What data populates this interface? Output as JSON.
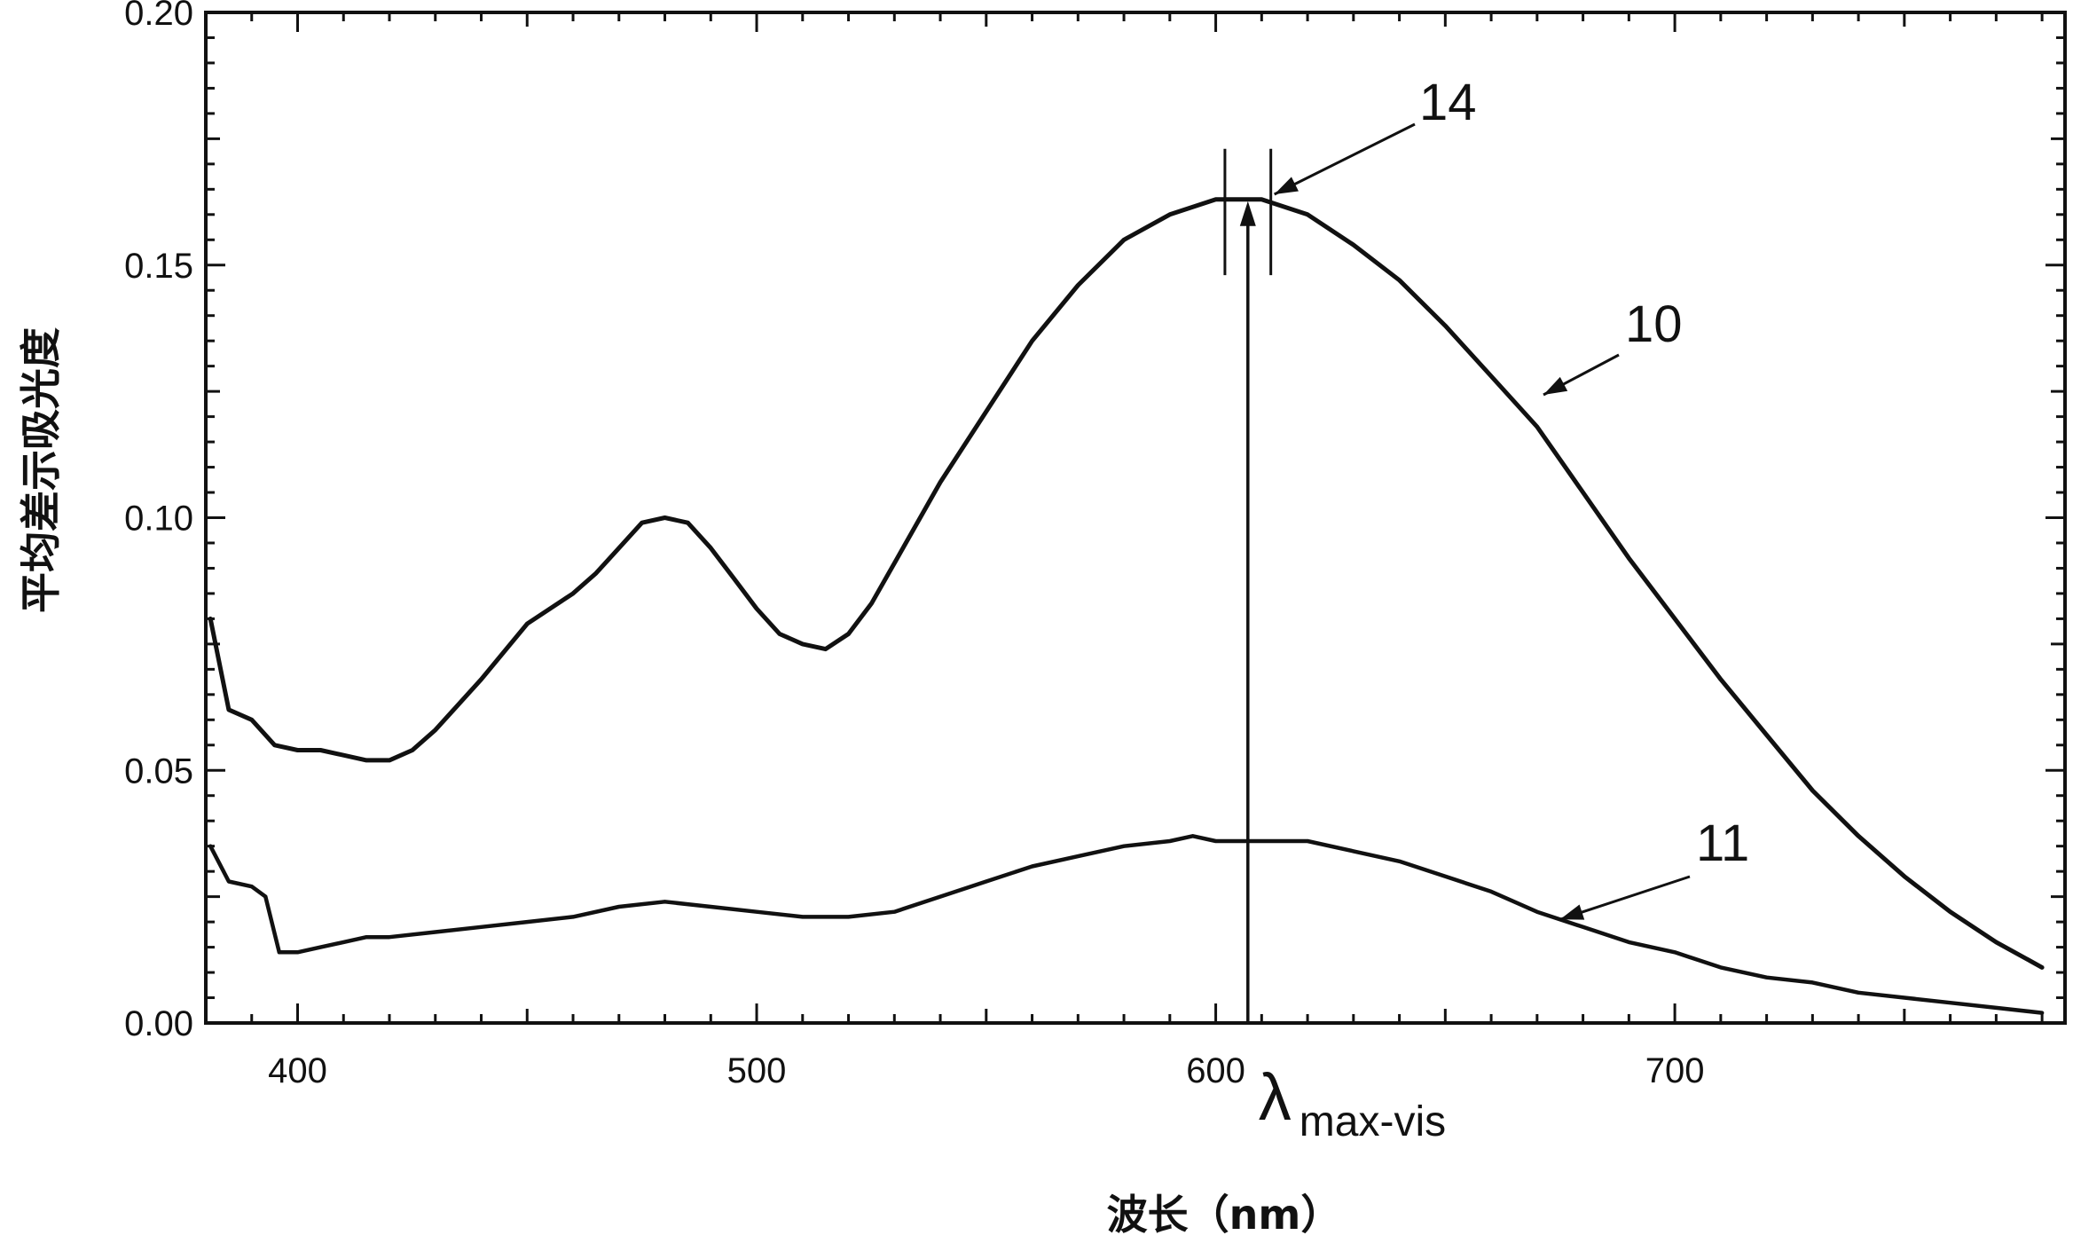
{
  "chart_data": {
    "type": "line",
    "title": "",
    "xlabel": "波长（nm）",
    "ylabel": "平均差示吸光度",
    "xlim": [
      380,
      785
    ],
    "ylim": [
      0,
      0.2
    ],
    "xticks": [
      400,
      500,
      600,
      700
    ],
    "xtick_labels": [
      "400",
      "500",
      "600",
      "700"
    ],
    "yticks": [
      0,
      0.05,
      0.1,
      0.15,
      0.2
    ],
    "ytick_labels": [
      "0.00",
      "0.05",
      "0.10",
      "0.15",
      "0.20"
    ],
    "grid": false,
    "series": [
      {
        "name": "10",
        "x": [
          381,
          385,
          390,
          395,
          400,
          405,
          410,
          415,
          420,
          425,
          430,
          440,
          450,
          460,
          465,
          470,
          475,
          480,
          485,
          490,
          495,
          500,
          505,
          510,
          515,
          520,
          525,
          530,
          540,
          550,
          560,
          570,
          580,
          590,
          600,
          605,
          610,
          620,
          630,
          640,
          650,
          660,
          670,
          680,
          690,
          700,
          710,
          720,
          730,
          740,
          750,
          760,
          770,
          780
        ],
        "y": [
          0.08,
          0.062,
          0.06,
          0.055,
          0.054,
          0.054,
          0.053,
          0.052,
          0.052,
          0.054,
          0.058,
          0.068,
          0.079,
          0.085,
          0.089,
          0.094,
          0.099,
          0.1,
          0.099,
          0.094,
          0.088,
          0.082,
          0.077,
          0.075,
          0.074,
          0.077,
          0.083,
          0.091,
          0.107,
          0.121,
          0.135,
          0.146,
          0.155,
          0.16,
          0.163,
          0.163,
          0.163,
          0.16,
          0.154,
          0.147,
          0.138,
          0.128,
          0.118,
          0.105,
          0.092,
          0.08,
          0.068,
          0.057,
          0.046,
          0.037,
          0.029,
          0.022,
          0.016,
          0.011
        ]
      },
      {
        "name": "11",
        "x": [
          381,
          385,
          390,
          393,
          396,
          400,
          405,
          410,
          415,
          420,
          430,
          440,
          450,
          460,
          470,
          480,
          490,
          500,
          510,
          520,
          530,
          540,
          550,
          560,
          570,
          580,
          590,
          595,
          600,
          610,
          620,
          630,
          640,
          650,
          660,
          670,
          680,
          690,
          700,
          710,
          720,
          730,
          740,
          750,
          760,
          770,
          780
        ],
        "y": [
          0.035,
          0.028,
          0.027,
          0.025,
          0.014,
          0.014,
          0.015,
          0.016,
          0.017,
          0.017,
          0.018,
          0.019,
          0.02,
          0.021,
          0.023,
          0.024,
          0.023,
          0.022,
          0.021,
          0.021,
          0.022,
          0.025,
          0.028,
          0.031,
          0.033,
          0.035,
          0.036,
          0.037,
          0.036,
          0.036,
          0.036,
          0.034,
          0.032,
          0.029,
          0.026,
          0.022,
          0.019,
          0.016,
          0.014,
          0.011,
          0.009,
          0.008,
          0.006,
          0.005,
          0.004,
          0.003,
          0.002
        ]
      }
    ],
    "markers": {
      "bracket_x": [
        602,
        612
      ],
      "bracket_y": [
        0.148,
        0.173
      ],
      "lambda_x": 607,
      "lambda_peak_y": 0.163
    },
    "annotations": {
      "label_14": "14",
      "label_10": "10",
      "label_11": "11",
      "lambda_symbol": "λ",
      "lambda_subscript": "max-vis"
    },
    "colors": {
      "line": "#111111",
      "background": "#ffffff"
    }
  }
}
